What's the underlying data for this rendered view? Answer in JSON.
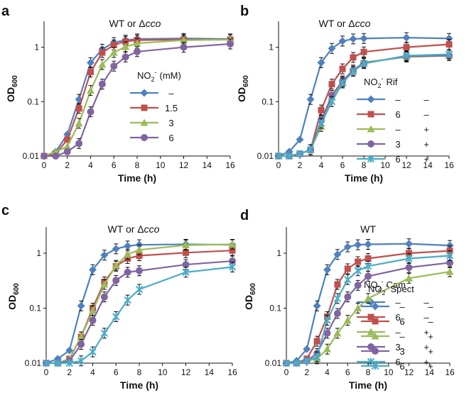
{
  "chart_data": [
    {
      "type": "line",
      "panel": "a",
      "title": "WT or Δcco",
      "title_main": "WT or Δ",
      "title_italic": "cco",
      "xlabel": "Time (h)",
      "ylabel_main": "OD",
      "ylabel_sub": "600",
      "yscale": "log",
      "ylim": [
        0.01,
        3
      ],
      "xlim": [
        0,
        16
      ],
      "xticks": [
        "0",
        "2",
        "4",
        "6",
        "8",
        "10",
        "12",
        "14",
        "16"
      ],
      "yticks": [
        "0.01",
        "0.1",
        "1"
      ],
      "legend_header_main": "NO",
      "legend_header_sub": "2",
      "legend_header_sup": "-",
      "legend_header_rest": "(mM)",
      "legend_position": "right",
      "series": [
        {
          "name": "–",
          "label2": "",
          "color": "#4f81bd",
          "marker": "diamond",
          "x": [
            0,
            1,
            2,
            3,
            4,
            5,
            6,
            7,
            8,
            12,
            16
          ],
          "y": [
            0.01,
            0.012,
            0.025,
            0.11,
            0.52,
            0.92,
            1.22,
            1.35,
            1.42,
            1.45,
            1.42
          ]
        },
        {
          "name": "1.5",
          "label2": "",
          "color": "#c0504d",
          "marker": "square",
          "x": [
            0,
            1,
            2,
            3,
            4,
            5,
            6,
            7,
            8,
            12,
            16
          ],
          "y": [
            0.01,
            0.011,
            0.02,
            0.075,
            0.35,
            0.8,
            1.1,
            1.28,
            1.35,
            1.38,
            1.38
          ]
        },
        {
          "name": "3",
          "label2": "",
          "color": "#9bbb59",
          "marker": "triangle",
          "x": [
            0,
            1,
            2,
            3,
            4,
            5,
            6,
            7,
            8,
            12,
            16
          ],
          "y": [
            0.01,
            0.012,
            0.015,
            0.04,
            0.16,
            0.48,
            0.8,
            1.02,
            1.18,
            1.35,
            1.38
          ]
        },
        {
          "name": "6",
          "label2": "",
          "color": "#8064a2",
          "marker": "circle",
          "x": [
            0,
            1,
            2,
            3,
            4,
            5,
            6,
            7,
            8,
            12,
            16
          ],
          "y": [
            0.01,
            0.01,
            0.012,
            0.017,
            0.065,
            0.21,
            0.45,
            0.66,
            0.83,
            1.0,
            1.15
          ]
        }
      ]
    },
    {
      "type": "line",
      "panel": "b",
      "title": "WT or Δcco",
      "title_main": "WT or Δ",
      "title_italic": "cco",
      "xlabel": "Time (h)",
      "ylabel_main": "OD",
      "ylabel_sub": "600",
      "yscale": "log",
      "ylim": [
        0.01,
        3
      ],
      "xlim": [
        0,
        16
      ],
      "xticks": [
        "0",
        "2",
        "4",
        "6",
        "8",
        "10",
        "12",
        "14",
        "16"
      ],
      "yticks": [
        "0.01",
        "0.1",
        "1"
      ],
      "legend_header_main": "NO",
      "legend_header_sub": "2",
      "legend_header_sup": "-",
      "legend_header_rest": "Rif",
      "legend_position": "right",
      "series": [
        {
          "name": "–",
          "label2": "–",
          "color": "#4f81bd",
          "marker": "diamond",
          "x": [
            0,
            1,
            2,
            3,
            4,
            5,
            6,
            7,
            8,
            12,
            16
          ],
          "y": [
            0.01,
            0.012,
            0.02,
            0.11,
            0.52,
            0.95,
            1.3,
            1.42,
            1.45,
            1.5,
            1.45
          ]
        },
        {
          "name": "6",
          "label2": "–",
          "color": "#c0504d",
          "marker": "square",
          "x": [
            0,
            1,
            2,
            3,
            4,
            5,
            6,
            7,
            8,
            12,
            16
          ],
          "y": [
            0.01,
            0.01,
            0.011,
            0.013,
            0.07,
            0.21,
            0.4,
            0.65,
            0.82,
            1.0,
            1.13
          ]
        },
        {
          "name": "–",
          "label2": "+",
          "color": "#9bbb59",
          "marker": "triangle",
          "x": [
            0,
            1,
            2,
            3,
            4,
            5,
            6,
            7,
            8,
            12,
            16
          ],
          "y": [
            0.01,
            0.01,
            0.011,
            0.013,
            0.035,
            0.12,
            0.23,
            0.38,
            0.53,
            0.66,
            0.7
          ]
        },
        {
          "name": "3",
          "label2": "+",
          "color": "#8064a2",
          "marker": "circle",
          "x": [
            0,
            1,
            2,
            3,
            4,
            5,
            6,
            7,
            8,
            12,
            16
          ],
          "y": [
            0.01,
            0.01,
            0.011,
            0.013,
            0.045,
            0.13,
            0.24,
            0.38,
            0.51,
            0.68,
            0.7
          ]
        },
        {
          "name": "6",
          "label2": "+",
          "color": "#4bacc6",
          "marker": "x",
          "x": [
            0,
            1,
            2,
            3,
            4,
            5,
            6,
            7,
            8,
            12,
            16
          ],
          "y": [
            0.01,
            0.01,
            0.011,
            0.013,
            0.04,
            0.1,
            0.22,
            0.36,
            0.5,
            0.7,
            0.74
          ]
        }
      ]
    },
    {
      "type": "line",
      "panel": "c",
      "title": "WT or Δcco",
      "title_main": "WT or Δ",
      "title_italic": "cco",
      "xlabel": "Time (h)",
      "ylabel_main": "OD",
      "ylabel_sub": "600",
      "yscale": "log",
      "ylim": [
        0.01,
        3
      ],
      "xlim": [
        0,
        16
      ],
      "xticks": [
        "0",
        "2",
        "4",
        "6",
        "8",
        "10",
        "12",
        "14",
        "16"
      ],
      "yticks": [
        "0.01",
        "0.1",
        "1"
      ],
      "legend_header_main": "NO",
      "legend_header_sub": "2",
      "legend_header_sup": "-",
      "legend_header_rest": "Cam",
      "legend_position": "right",
      "series": [
        {
          "name": "–",
          "label2": "–",
          "color": "#4f81bd",
          "marker": "diamond",
          "x": [
            0,
            1,
            2,
            3,
            4,
            5,
            6,
            7,
            8,
            12,
            16
          ],
          "y": [
            0.01,
            0.012,
            0.017,
            0.11,
            0.5,
            0.92,
            1.2,
            1.35,
            1.42,
            1.45,
            1.42
          ]
        },
        {
          "name": "6",
          "label2": "–",
          "color": "#c0504d",
          "marker": "square",
          "x": [
            0,
            1,
            2,
            3,
            4,
            5,
            6,
            7,
            8,
            12,
            16
          ],
          "y": [
            0.01,
            0.01,
            0.012,
            0.03,
            0.1,
            0.3,
            0.58,
            0.8,
            0.9,
            1.02,
            1.12
          ]
        },
        {
          "name": "–",
          "label2": "+",
          "color": "#9bbb59",
          "marker": "triangle",
          "x": [
            0,
            1,
            2,
            3,
            4,
            5,
            6,
            7,
            8,
            12,
            16
          ],
          "y": [
            0.01,
            0.01,
            0.012,
            0.03,
            0.09,
            0.27,
            0.6,
            0.95,
            1.15,
            1.4,
            1.45
          ]
        },
        {
          "name": "3",
          "label2": "+",
          "color": "#8064a2",
          "marker": "circle",
          "x": [
            0,
            1,
            2,
            3,
            4,
            5,
            6,
            7,
            8,
            12,
            16
          ],
          "y": [
            0.01,
            0.01,
            0.011,
            0.022,
            0.06,
            0.16,
            0.32,
            0.45,
            0.48,
            0.62,
            0.72
          ]
        },
        {
          "name": "6",
          "label2": "+",
          "color": "#4bacc6",
          "marker": "x",
          "x": [
            0,
            1,
            2,
            3,
            4,
            5,
            6,
            7,
            8,
            12,
            16
          ],
          "y": [
            0.01,
            0.01,
            0.01,
            0.011,
            0.016,
            0.035,
            0.07,
            0.14,
            0.22,
            0.45,
            0.56
          ]
        }
      ]
    },
    {
      "type": "line",
      "panel": "d",
      "title": "WT",
      "title_main": "WT",
      "title_italic": "",
      "xlabel": "Time (h)",
      "ylabel_main": "OD",
      "ylabel_sub": "600",
      "yscale": "log",
      "ylim": [
        0.01,
        3
      ],
      "xlim": [
        0,
        16
      ],
      "xticks": [
        "0",
        "2",
        "4",
        "6",
        "8",
        "10",
        "12",
        "14",
        "16"
      ],
      "yticks": [
        "0.01",
        "0.1",
        "1"
      ],
      "legend_header_main": "NO",
      "legend_header_sub": "2",
      "legend_header_sup": "-",
      "legend_header_rest": "Spect",
      "legend_position": "right",
      "series": [
        {
          "name": "–",
          "label2": "–",
          "color": "#4f81bd",
          "marker": "diamond",
          "x": [
            0,
            1,
            2,
            3,
            4,
            5,
            6,
            7,
            8,
            12,
            16
          ],
          "y": [
            0.01,
            0.011,
            0.018,
            0.11,
            0.5,
            0.95,
            1.3,
            1.42,
            1.45,
            1.48,
            1.38
          ]
        },
        {
          "name": "6",
          "label2": "–",
          "color": "#c0504d",
          "marker": "square",
          "x": [
            0,
            1,
            2,
            3,
            4,
            5,
            6,
            7,
            8,
            12,
            16
          ],
          "y": [
            0.01,
            0.01,
            0.012,
            0.025,
            0.07,
            0.27,
            0.52,
            0.7,
            0.8,
            1.0,
            1.1
          ]
        },
        {
          "name": "–",
          "label2": "+",
          "color": "#9bbb59",
          "marker": "triangle",
          "x": [
            0,
            1,
            2,
            3,
            4,
            5,
            6,
            7,
            8,
            12,
            16
          ],
          "y": [
            0.01,
            0.01,
            0.011,
            0.012,
            0.018,
            0.035,
            0.06,
            0.1,
            0.15,
            0.35,
            0.46
          ]
        },
        {
          "name": "3",
          "label2": "+",
          "color": "#8064a2",
          "marker": "circle",
          "x": [
            0,
            1,
            2,
            3,
            4,
            5,
            6,
            7,
            8,
            12,
            16
          ],
          "y": [
            0.01,
            0.01,
            0.011,
            0.015,
            0.035,
            0.08,
            0.16,
            0.26,
            0.38,
            0.55,
            0.67
          ]
        },
        {
          "name": "6",
          "label2": "+",
          "color": "#4bacc6",
          "marker": "x",
          "x": [
            0,
            1,
            2,
            3,
            4,
            5,
            6,
            7,
            8,
            12,
            16
          ],
          "y": [
            0.01,
            0.01,
            0.011,
            0.013,
            0.06,
            0.15,
            0.33,
            0.48,
            0.58,
            0.8,
            0.9
          ]
        }
      ]
    }
  ]
}
